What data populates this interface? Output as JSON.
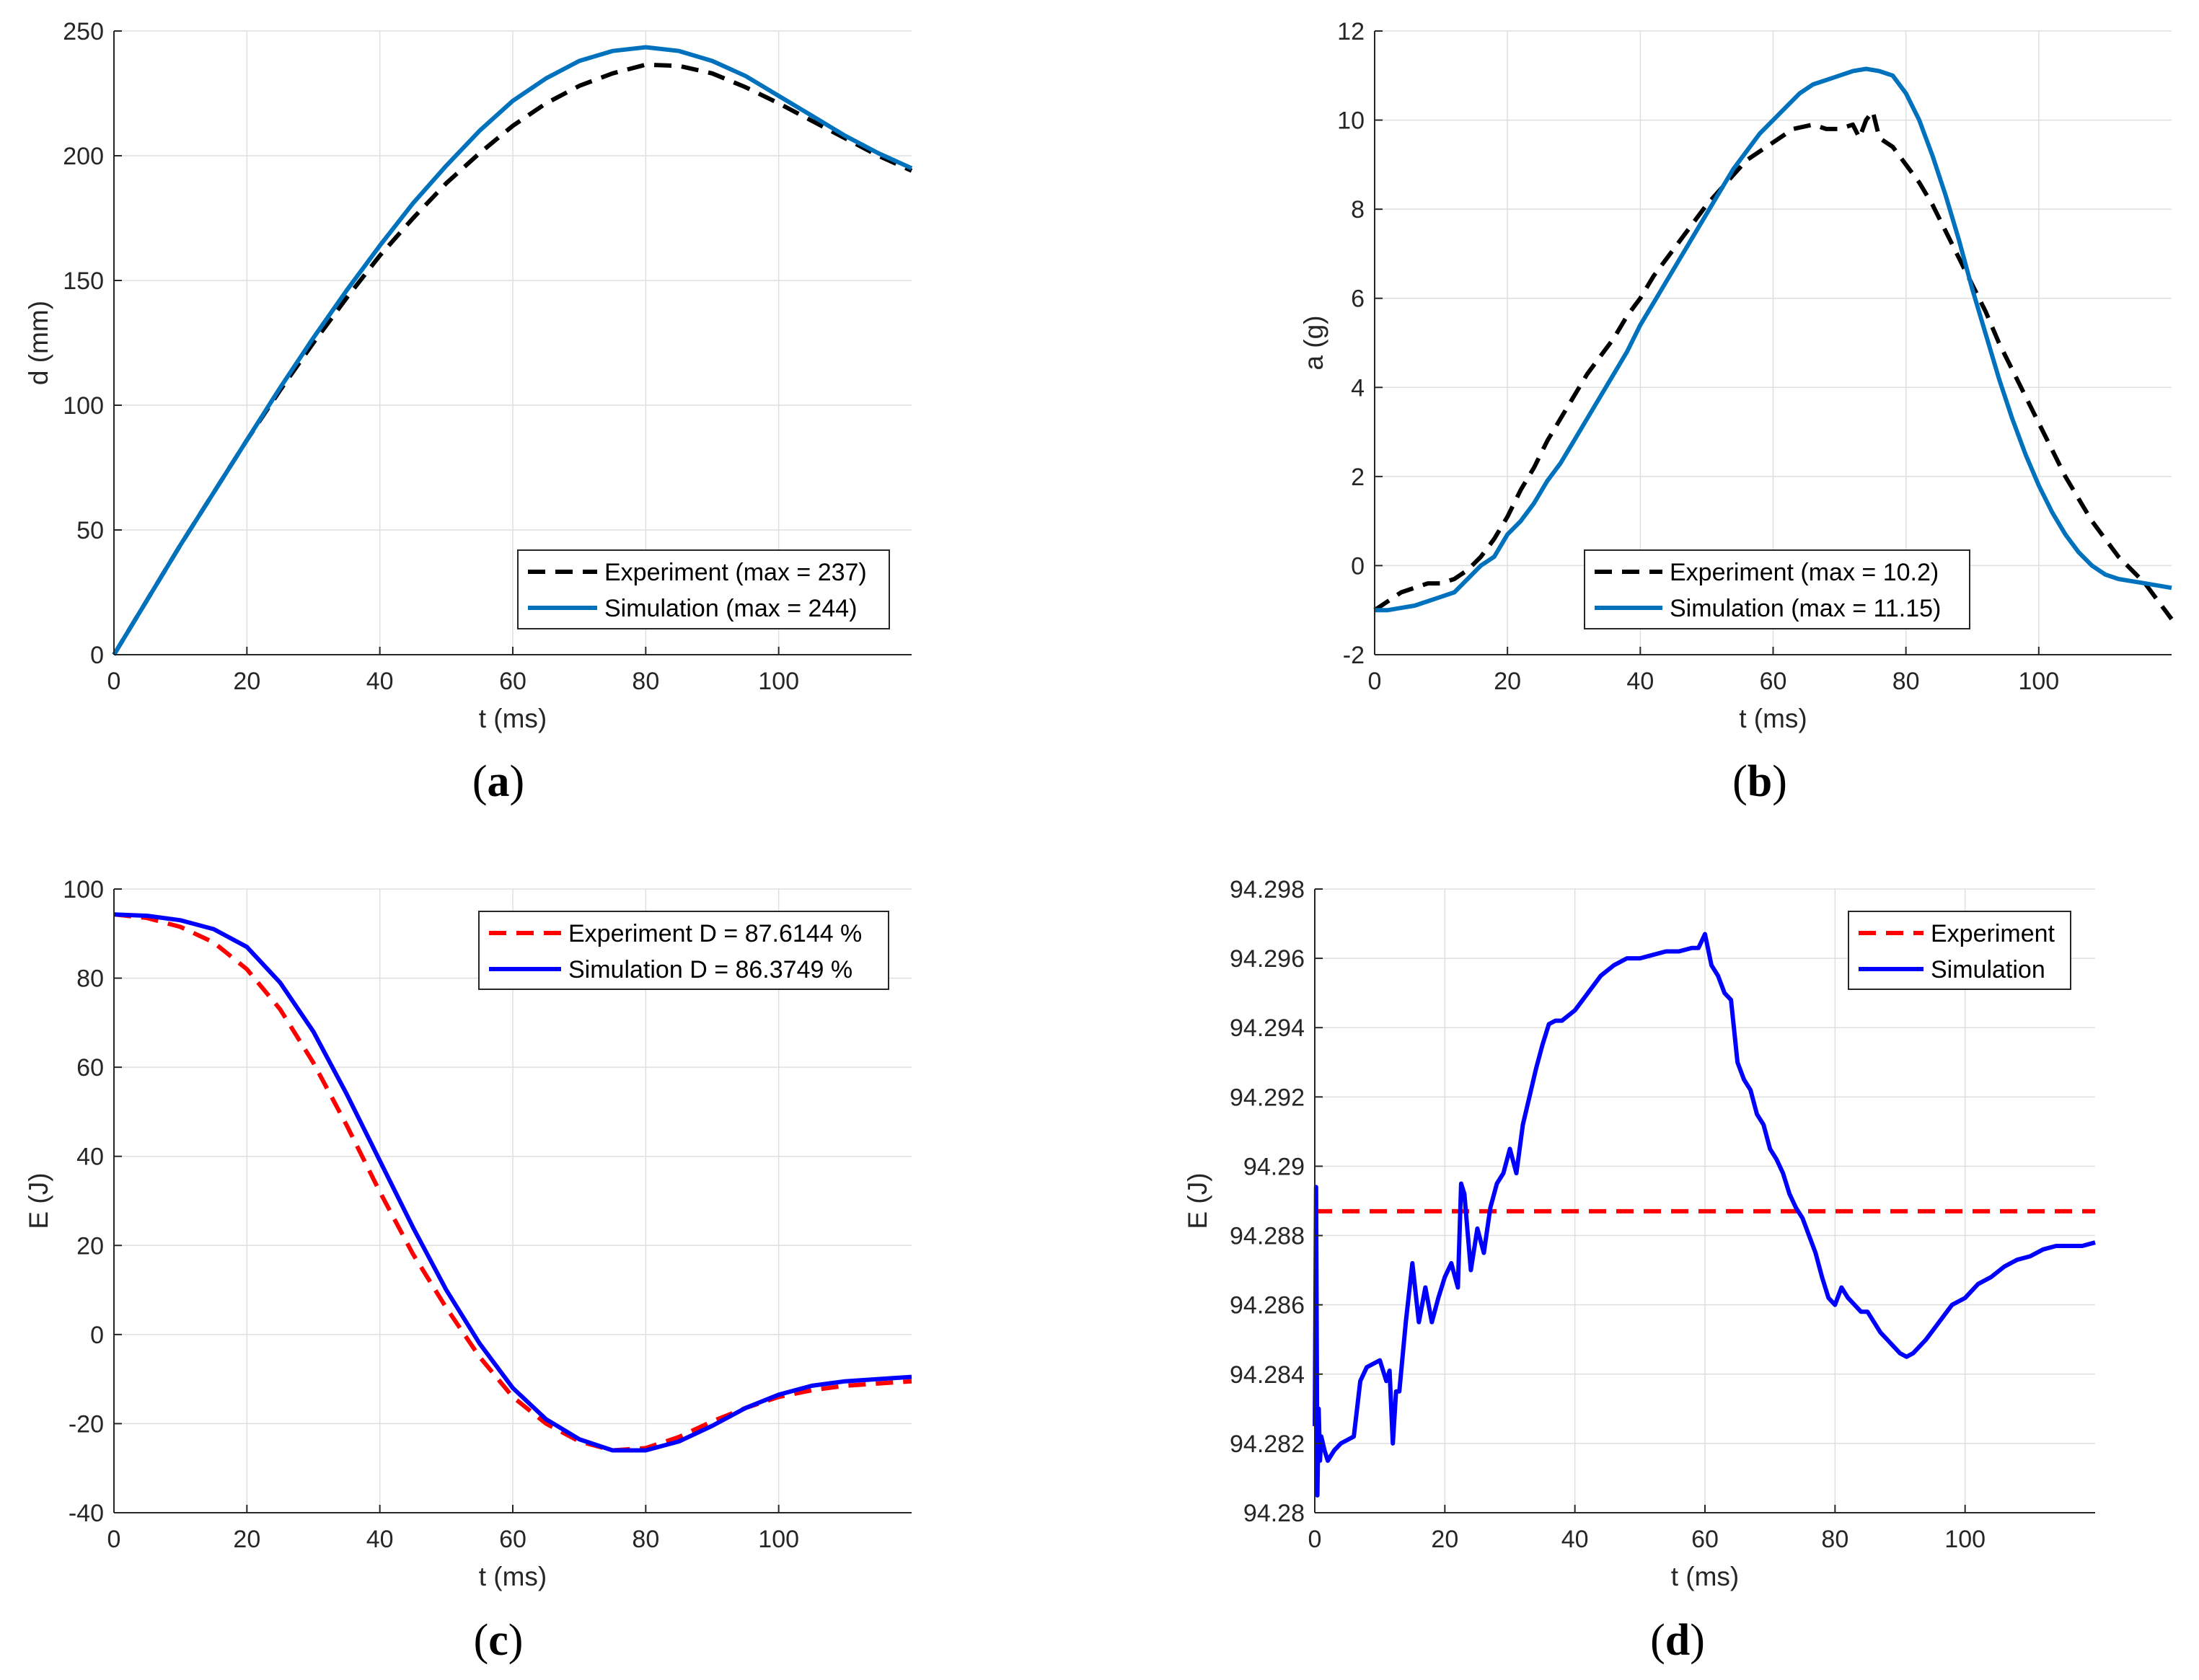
{
  "chart_data": [
    {
      "type": "line",
      "caption": "a",
      "xlabel": "t (ms)",
      "ylabel": "d (mm)",
      "xlim": [
        0,
        120
      ],
      "ylim": [
        0,
        250
      ],
      "xticks": [
        0,
        20,
        40,
        60,
        80,
        100
      ],
      "yticks": [
        0,
        50,
        100,
        150,
        200,
        250
      ],
      "grid": true,
      "legend_position": "bottom-right",
      "series": [
        {
          "name": "Experiment (max = 237)",
          "style": "dashed",
          "color": "#000000",
          "x": [
            0,
            5,
            10,
            15,
            20,
            25,
            30,
            35,
            40,
            45,
            50,
            55,
            60,
            65,
            70,
            75,
            80,
            85,
            90,
            95,
            100,
            105,
            110,
            115,
            120
          ],
          "y": [
            0,
            22,
            44,
            65,
            86,
            106,
            125,
            143,
            160,
            175,
            189,
            201,
            212,
            221,
            228,
            233,
            236.5,
            236,
            233,
            227.5,
            221,
            214,
            207,
            200,
            194
          ]
        },
        {
          "name": "Simulation (max = 244)",
          "style": "solid",
          "color": "#0072BD",
          "x": [
            0,
            5,
            10,
            15,
            20,
            25,
            30,
            35,
            40,
            45,
            50,
            55,
            60,
            65,
            70,
            75,
            80,
            85,
            90,
            95,
            100,
            105,
            110,
            115,
            120
          ],
          "y": [
            0,
            22,
            44,
            65,
            86,
            107,
            127,
            146,
            164,
            181,
            196,
            210,
            222,
            231,
            238,
            242,
            243.5,
            242,
            238,
            232,
            224,
            216,
            208,
            201,
            195
          ]
        }
      ]
    },
    {
      "type": "line",
      "caption": "b",
      "xlabel": "t (ms)",
      "ylabel": "a (g)",
      "xlim": [
        0,
        120
      ],
      "ylim": [
        -2,
        12
      ],
      "xticks": [
        0,
        20,
        40,
        60,
        80,
        100
      ],
      "yticks": [
        -2,
        0,
        2,
        4,
        6,
        8,
        10,
        12
      ],
      "grid": true,
      "legend_position": "bottom-right",
      "series": [
        {
          "name": "Experiment (max = 10.2)",
          "style": "dashed",
          "color": "#000000",
          "x": [
            0,
            2,
            4,
            6,
            8,
            10,
            12,
            14,
            16,
            18,
            20,
            22,
            24,
            26,
            28,
            30,
            32,
            34,
            36,
            38,
            40,
            42,
            45,
            48,
            50,
            53,
            56,
            60,
            63,
            66,
            68,
            70,
            72,
            73,
            74,
            75,
            76,
            78,
            80,
            82,
            84,
            86,
            88,
            90,
            92,
            94,
            96,
            98,
            100,
            102,
            104,
            106,
            108,
            110,
            112,
            114,
            116,
            118,
            120
          ],
          "y": [
            -1.0,
            -0.8,
            -0.6,
            -0.5,
            -0.4,
            -0.4,
            -0.3,
            -0.1,
            0.2,
            0.6,
            1.1,
            1.7,
            2.2,
            2.8,
            3.3,
            3.8,
            4.3,
            4.7,
            5.1,
            5.6,
            6.0,
            6.5,
            7.1,
            7.7,
            8.1,
            8.6,
            9.1,
            9.5,
            9.8,
            9.9,
            9.8,
            9.8,
            9.9,
            9.6,
            10.0,
            10.2,
            9.6,
            9.4,
            9.0,
            8.6,
            8.1,
            7.5,
            6.9,
            6.3,
            5.7,
            5.0,
            4.4,
            3.8,
            3.2,
            2.6,
            2.0,
            1.5,
            1.0,
            0.6,
            0.2,
            -0.1,
            -0.4,
            -0.8,
            -1.2
          ]
        },
        {
          "name": "Simulation (max = 11.15)",
          "style": "solid",
          "color": "#0072BD",
          "x": [
            0,
            2,
            4,
            6,
            8,
            10,
            12,
            14,
            16,
            18,
            20,
            22,
            24,
            26,
            28,
            30,
            32,
            34,
            36,
            38,
            40,
            42,
            44,
            46,
            48,
            50,
            52,
            54,
            56,
            58,
            60,
            62,
            64,
            66,
            68,
            70,
            72,
            74,
            76,
            78,
            80,
            82,
            84,
            86,
            88,
            90,
            92,
            94,
            96,
            98,
            100,
            102,
            104,
            106,
            108,
            110,
            112,
            114,
            116,
            118,
            120
          ],
          "y": [
            -1.0,
            -1.0,
            -0.95,
            -0.9,
            -0.8,
            -0.7,
            -0.6,
            -0.3,
            0.0,
            0.2,
            0.7,
            1.0,
            1.4,
            1.9,
            2.3,
            2.8,
            3.3,
            3.8,
            4.3,
            4.8,
            5.4,
            5.9,
            6.4,
            6.9,
            7.4,
            7.9,
            8.4,
            8.9,
            9.3,
            9.7,
            10.0,
            10.3,
            10.6,
            10.8,
            10.9,
            11.0,
            11.1,
            11.15,
            11.1,
            11.0,
            10.6,
            10.0,
            9.2,
            8.3,
            7.3,
            6.2,
            5.2,
            4.2,
            3.3,
            2.5,
            1.8,
            1.2,
            0.7,
            0.3,
            0.0,
            -0.2,
            -0.3,
            -0.35,
            -0.4,
            -0.45,
            -0.5
          ]
        }
      ]
    },
    {
      "type": "line",
      "caption": "c",
      "xlabel": "t (ms)",
      "ylabel": "E (J)",
      "xlim": [
        0,
        120
      ],
      "ylim": [
        -40,
        100
      ],
      "xticks": [
        0,
        20,
        40,
        60,
        80,
        100
      ],
      "yticks": [
        -40,
        -20,
        0,
        20,
        40,
        60,
        80,
        100
      ],
      "grid": true,
      "legend_position": "top-right",
      "series": [
        {
          "name": "Experiment D = 87.6144 %",
          "style": "dashed",
          "color": "#FF0000",
          "x": [
            0,
            5,
            10,
            15,
            20,
            25,
            30,
            35,
            40,
            45,
            50,
            55,
            60,
            65,
            70,
            75,
            80,
            85,
            90,
            95,
            100,
            105,
            110,
            115,
            120
          ],
          "y": [
            94.3,
            93.5,
            91.5,
            88,
            82,
            73,
            61,
            47,
            32,
            18,
            6,
            -5,
            -14,
            -20,
            -24,
            -26,
            -25.5,
            -23,
            -19.5,
            -16.5,
            -14,
            -12.5,
            -11.5,
            -11,
            -10.5
          ]
        },
        {
          "name": "Simulation D = 86.3749 %",
          "style": "solid",
          "color": "#0000FF",
          "x": [
            0,
            5,
            10,
            15,
            20,
            25,
            30,
            35,
            40,
            45,
            50,
            55,
            60,
            65,
            70,
            75,
            80,
            85,
            90,
            95,
            100,
            105,
            110,
            115,
            120
          ],
          "y": [
            94.3,
            94,
            93,
            91,
            87,
            79,
            68,
            54,
            39,
            24,
            10,
            -2,
            -12,
            -19,
            -23.5,
            -26,
            -26,
            -24,
            -20.5,
            -16.5,
            -13.5,
            -11.5,
            -10.5,
            -10,
            -9.5
          ]
        }
      ]
    },
    {
      "type": "line",
      "caption": "d",
      "xlabel": "t (ms)",
      "ylabel": "E (J)",
      "xlim": [
        0,
        120
      ],
      "ylim": [
        94.28,
        94.298
      ],
      "xticks": [
        0,
        20,
        40,
        60,
        80,
        100
      ],
      "yticks": [
        94.28,
        94.282,
        94.284,
        94.286,
        94.288,
        94.29,
        94.292,
        94.294,
        94.296,
        94.298
      ],
      "ytick_labels": [
        "94.28",
        "94.282",
        "94.284",
        "94.286",
        "94.288",
        "94.29",
        "94.292",
        "94.294",
        "94.296",
        "94.298"
      ],
      "grid": true,
      "legend_position": "top-right",
      "series": [
        {
          "name": "Experiment",
          "style": "dashed",
          "color": "#FF0000",
          "x": [
            0,
            120
          ],
          "y": [
            94.2887,
            94.2887
          ]
        },
        {
          "name": "Simulation",
          "style": "solid",
          "color": "#0000FF",
          "x": [
            0,
            0.2,
            0.4,
            0.6,
            0.8,
            1,
            1.5,
            2,
            3,
            4,
            5,
            6,
            7,
            8,
            9,
            10,
            11,
            11.5,
            12,
            12.5,
            13,
            14,
            15,
            16,
            17,
            18,
            19,
            20,
            21,
            22,
            22.5,
            23,
            24,
            25,
            26,
            27,
            28,
            29,
            30,
            31,
            32,
            33,
            34,
            35,
            36,
            37,
            38,
            40,
            42,
            44,
            46,
            48,
            50,
            52,
            54,
            56,
            58,
            59,
            60,
            61,
            62,
            63,
            64,
            65,
            66,
            67,
            68,
            69,
            70,
            71,
            72,
            73,
            74,
            75,
            76,
            77,
            78,
            79,
            80,
            81,
            82,
            83,
            84,
            85,
            86,
            87,
            88,
            89,
            90,
            91,
            92,
            94,
            96,
            98,
            100,
            102,
            104,
            106,
            108,
            110,
            112,
            114,
            116,
            118,
            120
          ],
          "y": [
            94.2825,
            94.2894,
            94.2805,
            94.283,
            94.2815,
            94.2822,
            94.2818,
            94.2815,
            94.2818,
            94.282,
            94.2821,
            94.2822,
            94.2838,
            94.2842,
            94.2843,
            94.2844,
            94.2838,
            94.2841,
            94.282,
            94.2835,
            94.2835,
            94.2855,
            94.2872,
            94.2855,
            94.2865,
            94.2855,
            94.2862,
            94.2868,
            94.2872,
            94.2865,
            94.2895,
            94.2892,
            94.287,
            94.2882,
            94.2875,
            94.2888,
            94.2895,
            94.2898,
            94.2905,
            94.2898,
            94.2912,
            94.292,
            94.2928,
            94.2935,
            94.2941,
            94.2942,
            94.2942,
            94.2945,
            94.295,
            94.2955,
            94.2958,
            94.296,
            94.296,
            94.2961,
            94.2962,
            94.2962,
            94.2963,
            94.2963,
            94.2967,
            94.2958,
            94.2955,
            94.295,
            94.2948,
            94.293,
            94.2925,
            94.2922,
            94.2915,
            94.2912,
            94.2905,
            94.2902,
            94.2898,
            94.2892,
            94.2888,
            94.2885,
            94.288,
            94.2875,
            94.2868,
            94.2862,
            94.286,
            94.2865,
            94.2862,
            94.286,
            94.2858,
            94.2858,
            94.2855,
            94.2852,
            94.285,
            94.2848,
            94.2846,
            94.2845,
            94.2846,
            94.285,
            94.2855,
            94.286,
            94.2862,
            94.2866,
            94.2868,
            94.2871,
            94.2873,
            94.2874,
            94.2876,
            94.2877,
            94.2877,
            94.2877,
            94.2878
          ]
        }
      ]
    }
  ]
}
